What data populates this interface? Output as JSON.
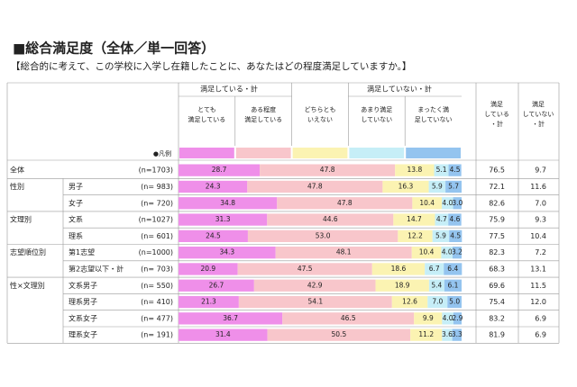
{
  "chart_data": {
    "type": "stacked-bar",
    "title": "■総合満足度（全体／単一回答）",
    "subtitle": "【総合的に考えて、この学校に入学し在籍したことに、あなたはどの程度満足していますか。】",
    "group_header_left": "満足している・計",
    "group_header_right": "満足していない・計",
    "legend_label": "●凡例",
    "xlim": [
      0,
      100
    ],
    "categories": [
      "全体",
      "男子",
      "女子",
      "文系",
      "理系",
      "第1志望",
      "第2志望以下・計",
      "文系男子",
      "理系男子",
      "文系女子",
      "理系女子"
    ],
    "groups": [
      null,
      "性別",
      null,
      "文理別",
      null,
      "志望順位別",
      null,
      "性×文理別",
      null,
      null,
      null
    ],
    "n_labels": [
      "(n=1703)",
      "(n=  983)",
      "(n=  720)",
      "(n=1027)",
      "(n=  601)",
      "(n=1000)",
      "(n=  703)",
      "(n=  550)",
      "(n=  410)",
      "(n=  477)",
      "(n=  191)"
    ],
    "series": [
      {
        "name": [
          "とても",
          "満足している"
        ],
        "color": "#ef8fe9",
        "values": [
          28.7,
          24.3,
          34.8,
          31.3,
          24.5,
          34.3,
          20.9,
          26.7,
          21.3,
          36.7,
          31.4
        ],
        "value_labels": [
          "28.7",
          "24.3",
          "34.8",
          "31.3",
          "24.5",
          "34.3",
          "20.9",
          "26.7",
          "21.3",
          "36.7",
          "31.4"
        ]
      },
      {
        "name": [
          "ある程度",
          "満足している"
        ],
        "color": "#f8c6cb",
        "values": [
          47.8,
          47.8,
          47.8,
          44.6,
          53.0,
          48.1,
          47.5,
          42.9,
          54.1,
          46.5,
          50.5
        ],
        "value_labels": [
          "47.8",
          "47.8",
          "47.8",
          "44.6",
          "53.0",
          "48.1",
          "47.5",
          "42.9",
          "54.1",
          "46.5",
          "50.5"
        ]
      },
      {
        "name": [
          "どちらとも",
          "いえない"
        ],
        "color": "#fbf3b2",
        "values": [
          13.8,
          16.3,
          10.4,
          14.7,
          12.2,
          10.4,
          18.6,
          18.9,
          12.6,
          9.9,
          11.2
        ],
        "value_labels": [
          "13.8",
          "16.3",
          "10.4",
          "14.7",
          "12.2",
          "10.4",
          "18.6",
          "18.9",
          "12.6",
          "9.9",
          "11.2"
        ]
      },
      {
        "name": [
          "あまり満足",
          "していない"
        ],
        "color": "#c6eef7",
        "values": [
          5.1,
          5.9,
          4.0,
          4.7,
          5.9,
          4.0,
          6.7,
          5.4,
          7.0,
          4.0,
          3.6
        ],
        "value_labels": [
          "5.1",
          "5.9",
          "4.0",
          "4.7",
          "5.9",
          "4.0",
          "6.7",
          "5.4",
          "7.0",
          "4.0",
          "3.6"
        ]
      },
      {
        "name": [
          "まったく満",
          "足していない"
        ],
        "color": "#94c4ef",
        "values": [
          4.5,
          5.7,
          3.0,
          4.6,
          4.5,
          3.2,
          6.4,
          6.1,
          5.0,
          2.9,
          3.3
        ],
        "value_labels": [
          "4.5",
          "5.7",
          "3.0",
          "4.6",
          "4.5",
          "3.2",
          "6.4",
          "6.1",
          "5.0",
          "2.9",
          "3.3"
        ]
      }
    ],
    "totals": [
      {
        "name": [
          "満足",
          "している",
          "・計"
        ],
        "values": [
          76.5,
          72.1,
          82.6,
          75.9,
          77.5,
          82.3,
          68.3,
          69.6,
          75.4,
          83.2,
          81.9
        ],
        "value_labels": [
          "76.5",
          "72.1",
          "82.6",
          "75.9",
          "77.5",
          "82.3",
          "68.3",
          "69.6",
          "75.4",
          "83.2",
          "81.9"
        ]
      },
      {
        "name": [
          "満足",
          "していない",
          "・計"
        ],
        "values": [
          9.7,
          11.6,
          7.0,
          9.3,
          10.4,
          7.2,
          13.1,
          11.5,
          12.0,
          6.9,
          6.9
        ],
        "value_labels": [
          "9.7",
          "11.6",
          "7.0",
          "9.3",
          "10.4",
          "7.2",
          "13.1",
          "11.5",
          "12.0",
          "6.9",
          "6.9"
        ]
      }
    ]
  }
}
